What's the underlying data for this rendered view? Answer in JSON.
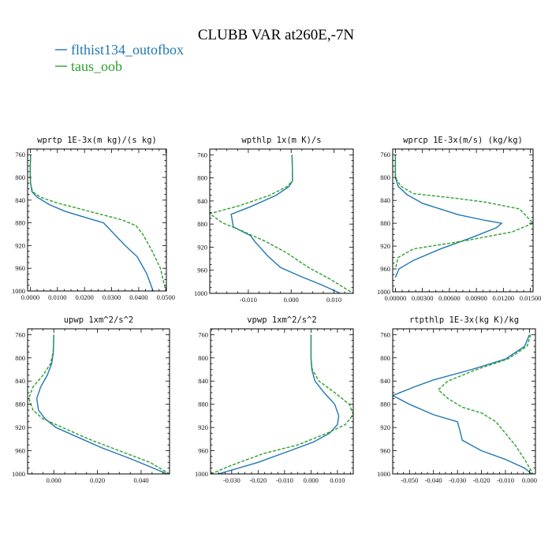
{
  "title": "CLUBB VAR at260E,-7N",
  "legend": [
    {
      "label": "flthist134_outofbox",
      "color": "#1f77b4"
    },
    {
      "label": "taus_oob",
      "color": "#2ca02c"
    }
  ],
  "chart_data": [
    {
      "type": "line",
      "title": "wprtp  1E-3x(m kg)/(s kg)",
      "xlim": [
        -0.001,
        0.0502
      ],
      "ylim": [
        1000,
        750
      ],
      "xticks": [
        "0.0000",
        "0.0100",
        "0.0200",
        "0.0300",
        "0.0400",
        "0.0500"
      ],
      "xtick_values": [
        0,
        0.01,
        0.02,
        0.03,
        0.04,
        0.05
      ],
      "yticks": [
        "760",
        "800",
        "840",
        "880",
        "920",
        "960",
        "1000"
      ],
      "ytick_values": [
        760,
        800,
        840,
        880,
        920,
        960,
        1000
      ],
      "series": [
        {
          "name": "flthist134_outofbox",
          "color": "#1f77b4",
          "dashed": false,
          "x": [
            0.0001,
            0.0,
            0.0,
            0.0001,
            0.0006,
            0.0026,
            0.0071,
            0.013,
            0.02,
            0.027,
            0.031,
            0.035,
            0.0395,
            0.043,
            0.0453
          ],
          "y": [
            760,
            780,
            800,
            810,
            825,
            835,
            848,
            860,
            870,
            880,
            900,
            920,
            940,
            970,
            1000
          ]
        },
        {
          "name": "taus_oob",
          "color": "#2ca02c",
          "dashed": true,
          "x": [
            0.0001,
            0.0,
            0.0,
            0.0001,
            0.0008,
            0.0038,
            0.01,
            0.018,
            0.026,
            0.034,
            0.039,
            0.0415,
            0.045,
            0.048,
            0.05
          ],
          "y": [
            760,
            780,
            800,
            810,
            825,
            835,
            845,
            855,
            865,
            875,
            885,
            900,
            930,
            960,
            1000
          ]
        }
      ]
    },
    {
      "type": "line",
      "title": "wpthlp  1x(m K)/s",
      "xlim": [
        -0.019,
        0.0145
      ],
      "ylim": [
        1000,
        750
      ],
      "xticks": [
        "-0.010",
        "0.000",
        "0.010"
      ],
      "xtick_values": [
        -0.01,
        0,
        0.01
      ],
      "yticks": [
        "760",
        "800",
        "840",
        "880",
        "920",
        "960",
        "1000"
      ],
      "ytick_values": [
        760,
        800,
        840,
        880,
        920,
        960,
        1000
      ],
      "series": [
        {
          "name": "flthist134_outofbox",
          "color": "#1f77b4",
          "dashed": false,
          "x": [
            0.0002,
            0.0003,
            0.0003,
            -0.0005,
            -0.0035,
            -0.0095,
            -0.014,
            -0.0135,
            -0.0095,
            -0.0085,
            -0.0055,
            -0.0025,
            0.002,
            0.007,
            0.0115
          ],
          "y": [
            760,
            790,
            805,
            815,
            830,
            850,
            863,
            885,
            900,
            910,
            935,
            955,
            970,
            985,
            1000
          ]
        },
        {
          "name": "taus_oob",
          "color": "#2ca02c",
          "dashed": true,
          "x": [
            0.0002,
            0.0003,
            0.0003,
            -0.001,
            -0.005,
            -0.012,
            -0.019,
            -0.016,
            -0.012,
            -0.006,
            -0.001,
            0.004,
            0.009,
            0.0145
          ],
          "y": [
            760,
            790,
            805,
            815,
            830,
            848,
            862,
            878,
            890,
            910,
            930,
            955,
            975,
            1000
          ]
        }
      ]
    },
    {
      "type": "line",
      "title": "wprcp  1E-3x(m/s) (kg/kg)",
      "xlim": [
        -0.0003,
        0.0153
      ],
      "ylim": [
        1000,
        750
      ],
      "xticks": [
        "0.00000",
        "0.00300",
        "0.00600",
        "0.00900",
        "0.01200",
        "0.01500"
      ],
      "xtick_values": [
        0,
        0.003,
        0.006,
        0.009,
        0.012,
        0.015
      ],
      "yticks": [
        "760",
        "800",
        "840",
        "880",
        "920",
        "960",
        "1000"
      ],
      "ytick_values": [
        760,
        800,
        840,
        880,
        920,
        960,
        1000
      ],
      "series": [
        {
          "name": "flthist134_outofbox",
          "color": "#1f77b4",
          "dashed": false,
          "x": [
            0.0,
            0.0,
            0.0003,
            0.0013,
            0.003,
            0.007,
            0.01,
            0.0118,
            0.0112,
            0.0085,
            0.005,
            0.002,
            0.0004,
            0.0
          ],
          "y": [
            760,
            800,
            815,
            830,
            845,
            865,
            875,
            880,
            888,
            905,
            925,
            945,
            960,
            975
          ]
        },
        {
          "name": "taus_oob",
          "color": "#2ca02c",
          "dashed": true,
          "x": [
            0.0,
            0.0,
            0.0006,
            0.002,
            0.006,
            0.01,
            0.0138,
            0.0153,
            0.013,
            0.008,
            0.002,
            0.0003,
            0.0
          ],
          "y": [
            760,
            800,
            815,
            828,
            835,
            843,
            855,
            880,
            895,
            910,
            925,
            940,
            960
          ]
        }
      ]
    },
    {
      "type": "line",
      "title": "upwp  1xm^2/s^2",
      "xlim": [
        -0.012,
        0.053
      ],
      "ylim": [
        1000,
        750
      ],
      "xticks": [
        "0.000",
        "0.020",
        "0.040"
      ],
      "xtick_values": [
        0,
        0.02,
        0.04
      ],
      "yticks": [
        "760",
        "800",
        "840",
        "880",
        "920",
        "960",
        "1000"
      ],
      "ytick_values": [
        760,
        800,
        840,
        880,
        920,
        960,
        1000
      ],
      "series": [
        {
          "name": "flthist134_outofbox",
          "color": "#1f77b4",
          "dashed": false,
          "x": [
            0.0,
            -0.0002,
            -0.001,
            -0.003,
            -0.006,
            -0.0078,
            -0.007,
            -0.004,
            0.001,
            0.01,
            0.022,
            0.036,
            0.052
          ],
          "y": [
            760,
            790,
            810,
            830,
            850,
            870,
            890,
            905,
            920,
            935,
            955,
            975,
            1000
          ]
        },
        {
          "name": "taus_oob",
          "color": "#2ca02c",
          "dashed": true,
          "x": [
            0.0,
            -0.0003,
            -0.0015,
            -0.005,
            -0.0095,
            -0.0115,
            -0.0095,
            -0.005,
            0.004,
            0.016,
            0.03,
            0.044,
            0.053
          ],
          "y": [
            760,
            790,
            810,
            830,
            850,
            870,
            890,
            905,
            920,
            940,
            960,
            980,
            1000
          ]
        }
      ]
    },
    {
      "type": "line",
      "title": "vpwp  1xm^2/s^2",
      "xlim": [
        -0.038,
        0.016
      ],
      "ylim": [
        1000,
        750
      ],
      "xticks": [
        "-0.030",
        "-0.020",
        "-0.010",
        "0.000",
        "0.010"
      ],
      "xtick_values": [
        -0.03,
        -0.02,
        -0.01,
        0,
        0.01
      ],
      "yticks": [
        "760",
        "800",
        "840",
        "880",
        "920",
        "960",
        "1000"
      ],
      "ytick_values": [
        760,
        800,
        840,
        880,
        920,
        960,
        1000
      ],
      "series": [
        {
          "name": "flthist134_outofbox",
          "color": "#1f77b4",
          "dashed": false,
          "x": [
            0.0,
            0.0,
            0.0003,
            0.0015,
            0.005,
            0.009,
            0.0105,
            0.01,
            0.007,
            0.001,
            -0.008,
            -0.02,
            -0.035
          ],
          "y": [
            760,
            800,
            820,
            840,
            860,
            880,
            900,
            915,
            930,
            945,
            960,
            980,
            1000
          ]
        },
        {
          "name": "taus_oob",
          "color": "#2ca02c",
          "dashed": true,
          "x": [
            0.0,
            0.0,
            0.0005,
            0.003,
            0.009,
            0.0145,
            0.016,
            0.013,
            0.006,
            -0.005,
            -0.018,
            -0.03,
            -0.038
          ],
          "y": [
            760,
            800,
            820,
            840,
            860,
            880,
            898,
            915,
            930,
            950,
            965,
            985,
            1000
          ]
        }
      ]
    },
    {
      "type": "line",
      "title": "rtpthlp  1E-3x(kg K)/kg",
      "xlim": [
        -0.057,
        0.0025
      ],
      "ylim": [
        1000,
        750
      ],
      "xticks": [
        "-0.050",
        "-0.040",
        "-0.030",
        "-0.020",
        "-0.010",
        "0.000"
      ],
      "xtick_values": [
        -0.05,
        -0.04,
        -0.03,
        -0.02,
        -0.01,
        0
      ],
      "yticks": [
        "760",
        "800",
        "840",
        "880",
        "920",
        "960",
        "1000"
      ],
      "ytick_values": [
        760,
        800,
        840,
        880,
        920,
        960,
        1000
      ],
      "series": [
        {
          "name": "flthist134_outofbox",
          "color": "#1f77b4",
          "dashed": false,
          "x": [
            0.0,
            -0.002,
            -0.01,
            -0.024,
            -0.04,
            -0.048,
            -0.057,
            -0.05,
            -0.04,
            -0.03,
            -0.029,
            -0.028,
            -0.02,
            -0.01,
            -0.002,
            0.001
          ],
          "y": [
            760,
            780,
            802,
            820,
            838,
            850,
            865,
            880,
            898,
            910,
            925,
            942,
            960,
            975,
            990,
            1000
          ]
        },
        {
          "name": "taus_oob",
          "color": "#2ca02c",
          "dashed": true,
          "x": [
            0.0005,
            -0.001,
            -0.009,
            -0.022,
            -0.034,
            -0.038,
            -0.034,
            -0.028,
            -0.02,
            -0.014,
            -0.011,
            -0.006,
            -0.002,
            0.0015
          ],
          "y": [
            760,
            780,
            802,
            820,
            840,
            855,
            870,
            885,
            895,
            910,
            925,
            950,
            975,
            1000
          ]
        }
      ]
    }
  ]
}
